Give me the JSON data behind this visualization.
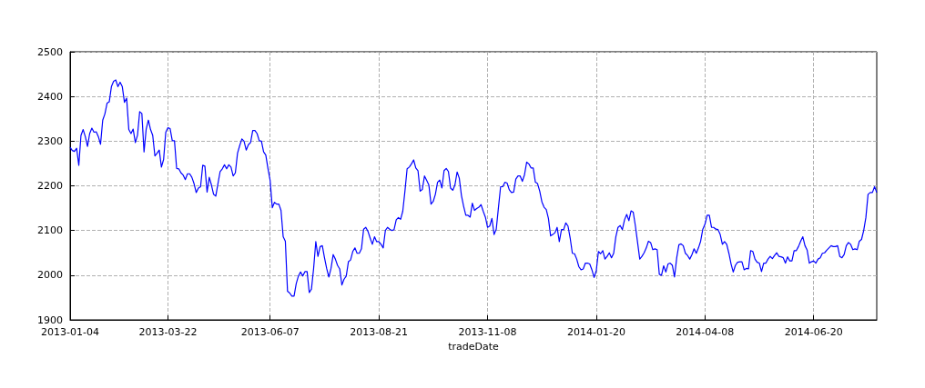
{
  "chart_data": {
    "type": "line",
    "xlabel": "tradeDate",
    "categories": [
      "2013-01-04",
      null,
      null,
      null,
      null,
      null,
      null,
      null,
      null,
      null,
      null,
      null,
      null,
      null,
      null,
      null,
      null,
      null,
      null,
      null,
      null,
      null,
      null,
      null,
      null,
      null,
      null,
      null,
      null,
      null,
      null,
      null,
      null,
      null,
      null,
      null,
      null,
      null,
      null,
      null,
      null,
      null,
      null,
      null,
      null,
      "2013-03-22",
      null,
      null,
      null,
      null,
      null,
      null,
      null,
      null,
      null,
      null,
      null,
      null,
      null,
      null,
      null,
      null,
      null,
      null,
      null,
      null,
      null,
      null,
      null,
      null,
      null,
      null,
      null,
      null,
      null,
      null,
      null,
      null,
      null,
      null,
      null,
      null,
      null,
      null,
      null,
      null,
      null,
      null,
      null,
      null,
      null,
      null,
      "2013-06-07",
      null,
      null,
      null,
      null,
      null,
      null,
      null,
      null,
      null,
      null,
      null,
      null,
      null,
      null,
      null,
      null,
      null,
      null,
      null,
      null,
      null,
      null,
      null,
      null,
      null,
      null,
      null,
      null,
      null,
      null,
      null,
      null,
      null,
      null,
      null,
      null,
      null,
      null,
      null,
      null,
      null,
      null,
      null,
      null,
      null,
      null,
      null,
      null,
      null,
      "2013-08-21",
      null,
      null,
      null,
      null,
      null,
      null,
      null,
      null,
      null,
      null,
      null,
      null,
      null,
      null,
      null,
      null,
      null,
      null,
      null,
      null,
      null,
      null,
      null,
      null,
      null,
      null,
      null,
      null,
      null,
      null,
      null,
      null,
      null,
      null,
      null,
      null,
      null,
      null,
      null,
      null,
      null,
      null,
      null,
      null,
      null,
      null,
      null,
      null,
      null,
      "2013-11-08",
      null,
      null,
      null,
      null,
      null,
      null,
      null,
      null,
      null,
      null,
      null,
      null,
      null,
      null,
      null,
      null,
      null,
      null,
      null,
      null,
      null,
      null,
      null,
      null,
      null,
      null,
      null,
      null,
      null,
      null,
      null,
      null,
      null,
      null,
      null,
      null,
      null,
      null,
      null,
      null,
      null,
      null,
      null,
      null,
      null,
      null,
      null,
      null,
      null,
      "2014-01-20",
      null,
      null,
      null,
      null,
      null,
      null,
      null,
      null,
      null,
      null,
      null,
      null,
      null,
      null,
      null,
      null,
      null,
      null,
      null,
      null,
      null,
      null,
      null,
      null,
      null,
      null,
      null,
      null,
      null,
      null,
      null,
      null,
      null,
      null,
      null,
      null,
      null,
      null,
      null,
      null,
      null,
      null,
      null,
      null,
      null,
      null,
      null,
      null,
      null,
      "2014-04-08",
      null,
      null,
      null,
      null,
      null,
      null,
      null,
      null,
      null,
      null,
      null,
      null,
      null,
      null,
      null,
      null,
      null,
      null,
      null,
      null,
      null,
      null,
      null,
      null,
      null,
      null,
      null,
      null,
      null,
      null,
      null,
      null,
      null,
      null,
      null,
      null,
      null,
      null,
      null,
      null,
      null,
      null,
      null,
      null,
      null,
      null,
      null,
      null,
      null,
      "2014-06-20",
      null,
      null,
      null,
      null,
      null,
      null,
      null,
      null,
      null,
      null,
      null,
      null,
      null,
      null,
      null,
      null,
      null,
      null,
      null,
      null,
      null,
      null,
      null,
      null,
      null,
      null,
      null,
      null,
      null
    ],
    "ylim": [
      1900,
      2500
    ],
    "yticks": [
      1900,
      2000,
      2100,
      2200,
      2300,
      2400,
      2500
    ],
    "grid": true,
    "marker": "none",
    "line_style": "solid",
    "series": [
      {
        "color": "#0000ff",
        "values": [
          2286,
          2279,
          2277,
          2284,
          2246,
          2313,
          2326,
          2310,
          2288,
          2317,
          2329,
          2320,
          2321,
          2310,
          2293,
          2347,
          2361,
          2385,
          2388,
          2422,
          2434,
          2437,
          2422,
          2432,
          2422,
          2387,
          2396,
          2326,
          2317,
          2327,
          2297,
          2313,
          2366,
          2362,
          2276,
          2327,
          2347,
          2326,
          2313,
          2267,
          2273,
          2280,
          2242,
          2259,
          2320,
          2330,
          2328,
          2301,
          2301,
          2239,
          2238,
          2229,
          2224,
          2214,
          2227,
          2227,
          2219,
          2205,
          2185,
          2195,
          2198,
          2246,
          2244,
          2186,
          2219,
          2202,
          2181,
          2177,
          2205,
          2232,
          2238,
          2247,
          2238,
          2247,
          2242,
          2222,
          2229,
          2273,
          2290,
          2305,
          2300,
          2280,
          2292,
          2297,
          2324,
          2324,
          2317,
          2301,
          2300,
          2276,
          2269,
          2239,
          2212,
          2151,
          2163,
          2159,
          2159,
          2145,
          2086,
          2076,
          1964,
          1960,
          1953,
          1953,
          1981,
          1998,
          2007,
          1998,
          2008,
          2008,
          1961,
          1969,
          2015,
          2075,
          2042,
          2064,
          2066,
          2039,
          2015,
          1996,
          2015,
          2046,
          2036,
          2022,
          2014,
          1978,
          1991,
          1998,
          2030,
          2034,
          2053,
          2061,
          2049,
          2049,
          2059,
          2103,
          2107,
          2098,
          2083,
          2069,
          2086,
          2075,
          2075,
          2069,
          2061,
          2100,
          2107,
          2103,
          2100,
          2102,
          2124,
          2129,
          2125,
          2143,
          2188,
          2238,
          2242,
          2249,
          2258,
          2240,
          2234,
          2188,
          2192,
          2222,
          2212,
          2202,
          2159,
          2165,
          2181,
          2208,
          2213,
          2195,
          2234,
          2239,
          2232,
          2195,
          2190,
          2202,
          2231,
          2217,
          2178,
          2154,
          2134,
          2134,
          2130,
          2161,
          2145,
          2149,
          2152,
          2158,
          2143,
          2130,
          2107,
          2110,
          2127,
          2091,
          2103,
          2151,
          2198,
          2198,
          2208,
          2206,
          2191,
          2185,
          2186,
          2215,
          2222,
          2222,
          2210,
          2225,
          2253,
          2249,
          2240,
          2240,
          2208,
          2205,
          2188,
          2164,
          2152,
          2147,
          2127,
          2088,
          2091,
          2095,
          2107,
          2075,
          2102,
          2102,
          2117,
          2110,
          2083,
          2049,
          2048,
          2036,
          2019,
          2012,
          2014,
          2027,
          2027,
          2025,
          2012,
          1995,
          2010,
          2053,
          2048,
          2055,
          2036,
          2042,
          2050,
          2039,
          2049,
          2086,
          2107,
          2111,
          2102,
          2124,
          2136,
          2122,
          2144,
          2141,
          2110,
          2073,
          2036,
          2042,
          2050,
          2061,
          2076,
          2073,
          2057,
          2059,
          2057,
          2002,
          2000,
          2021,
          2007,
          2025,
          2027,
          2022,
          1996,
          2039,
          2068,
          2070,
          2066,
          2049,
          2044,
          2036,
          2046,
          2059,
          2049,
          2061,
          2076,
          2103,
          2114,
          2134,
          2134,
          2107,
          2107,
          2103,
          2102,
          2091,
          2069,
          2075,
          2069,
          2049,
          2025,
          2007,
          2022,
          2029,
          2030,
          2030,
          2012,
          2015,
          2014,
          2055,
          2053,
          2036,
          2029,
          2027,
          2008,
          2027,
          2027,
          2036,
          2042,
          2037,
          2044,
          2050,
          2042,
          2041,
          2039,
          2027,
          2041,
          2032,
          2032,
          2055,
          2055,
          2064,
          2076,
          2086,
          2066,
          2056,
          2027,
          2030,
          2032,
          2027,
          2036,
          2039,
          2049,
          2050,
          2056,
          2061,
          2066,
          2064,
          2064,
          2066,
          2042,
          2039,
          2046,
          2066,
          2073,
          2069,
          2057,
          2059,
          2057,
          2076,
          2080,
          2100,
          2129,
          2181,
          2185,
          2185,
          2198,
          2185
        ]
      }
    ]
  }
}
